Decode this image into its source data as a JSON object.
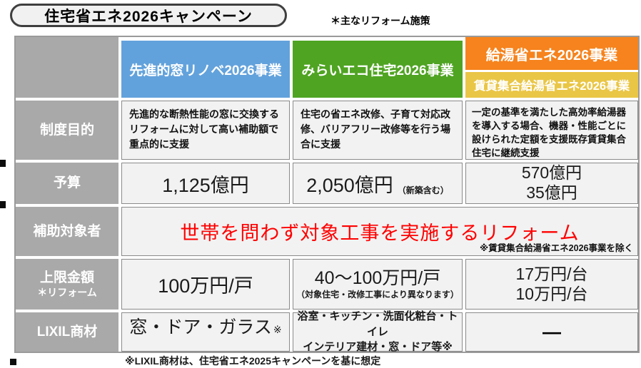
{
  "page": {
    "title": "住宅省エネ2026キャンペーン",
    "note_top": "＊主なリフォーム施策",
    "footnote": "※LIXIL商材は、住宅省エネ2025キャンペーンを基に想定"
  },
  "colors": {
    "window_blue": "#62A2DC",
    "eco_green": "#4FA422",
    "kyuto_orange": "#F6831D",
    "chintai_yellow": "#EAC646",
    "label_gray": "#A9A9A9",
    "cell_bg": "#F2F2F2",
    "highlight_red": "#FF0000"
  },
  "table": {
    "programs": [
      {
        "name": "先進的窓リノベ2026事業"
      },
      {
        "name": "みらいエコ住宅2026事業"
      },
      {
        "name": "給湯省エネ2026事業",
        "subname": "賃貸集合給湯省エネ2026事業"
      }
    ],
    "purpose": {
      "label": "制度目的",
      "cells": [
        "先進的な断熱性能の窓に交換するリフォームに対して高い補助額で重点的に支援",
        "住宅の省エネ改修、子育て対応改修、バリアフリー改修等を行う場合に支援",
        "一定の基準を満たした高効率給湯器を導入する場合、機器・性能ごとに設けられた定額を支援既存賃貸集合住宅に継続支援"
      ]
    },
    "budget": {
      "label": "予算",
      "col1": "1,125億円",
      "col2": "2,050億円",
      "col2_note": "（新築含む）",
      "col3_line1": "570億円",
      "col3_line2": "35億円"
    },
    "target": {
      "label": "補助対象者",
      "text": "世帯を問わず対象工事を実施するリフォーム",
      "note": "※賃貸集合給湯省エネ2026事業を除く"
    },
    "limit": {
      "label": "上限金額",
      "label_sub": "＊リフォーム",
      "col1": "100万円/戸",
      "col2": "40～100万円/戸",
      "col2_note": "（対象住宅・改修工事により異なります）",
      "col3_line1": "17万円/台",
      "col3_line2": "10万円/台"
    },
    "lixil": {
      "label": "LIXIL商材",
      "col1": "窓・ドア・ガラス",
      "col1_marker": "※",
      "col2_line1": "浴室・キッチン・洗面化粧台・トイレ",
      "col2_line2": "インテリア建材・窓・ドア等※",
      "col3": "—"
    }
  }
}
